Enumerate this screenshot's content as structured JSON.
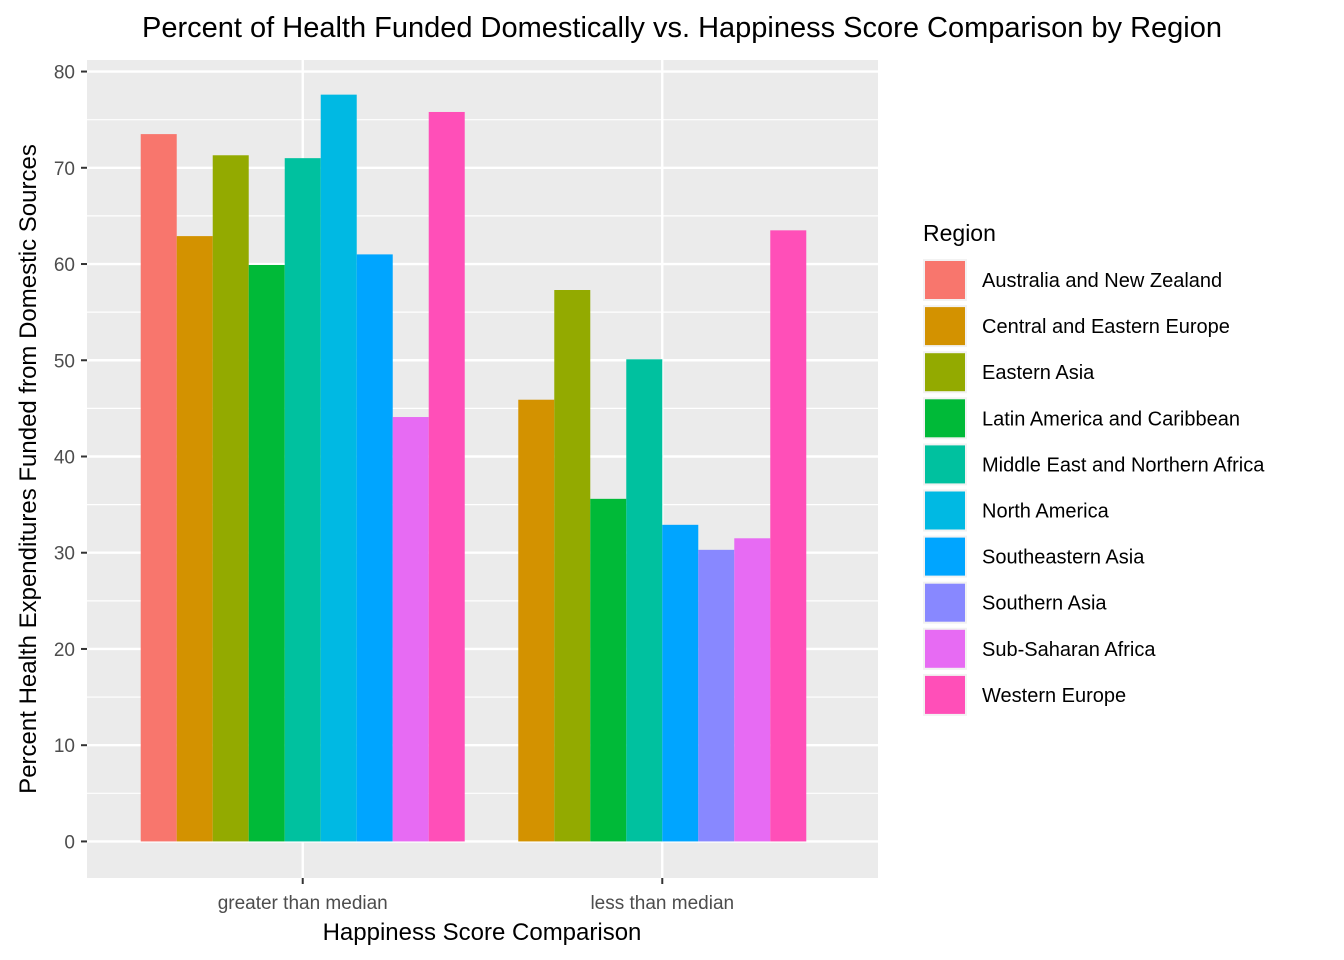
{
  "chart_data": {
    "type": "bar",
    "title": "Percent of Health Funded Domestically vs. Happiness Score Comparison by Region",
    "xlabel": "Happiness Score Comparison",
    "ylabel": "Percent Health Expenditures Funded from Domestic Sources",
    "categories": [
      "greater than median",
      "less than median"
    ],
    "ylim": [
      -3.8,
      81.2
    ],
    "yticks": [
      0,
      10,
      20,
      30,
      40,
      50,
      60,
      70,
      80
    ],
    "grid": true,
    "legend": {
      "title": "Region",
      "position": "right"
    },
    "series": [
      {
        "name": "Australia and New Zealand",
        "color": "#F8766D",
        "values": [
          73.5,
          null
        ]
      },
      {
        "name": "Central and Eastern Europe",
        "color": "#D39200",
        "values": [
          62.9,
          45.9
        ]
      },
      {
        "name": "Eastern Asia",
        "color": "#93AA00",
        "values": [
          71.3,
          57.3
        ]
      },
      {
        "name": "Latin America and Caribbean",
        "color": "#00BA38",
        "values": [
          59.9,
          35.6
        ]
      },
      {
        "name": "Middle East and Northern Africa",
        "color": "#00C19F",
        "values": [
          71.0,
          50.1
        ]
      },
      {
        "name": "North America",
        "color": "#00B9E3",
        "values": [
          77.6,
          null
        ]
      },
      {
        "name": "Southeastern Asia",
        "color": "#00A5FF",
        "values": [
          61.0,
          32.9
        ]
      },
      {
        "name": "Southern Asia",
        "color": "#8888FF",
        "values": [
          null,
          30.3
        ]
      },
      {
        "name": "Sub-Saharan Africa",
        "color": "#E76BF3",
        "values": [
          44.1,
          31.5
        ]
      },
      {
        "name": "Western Europe",
        "color": "#FF4FB8",
        "values": [
          75.8,
          63.5
        ]
      }
    ]
  }
}
